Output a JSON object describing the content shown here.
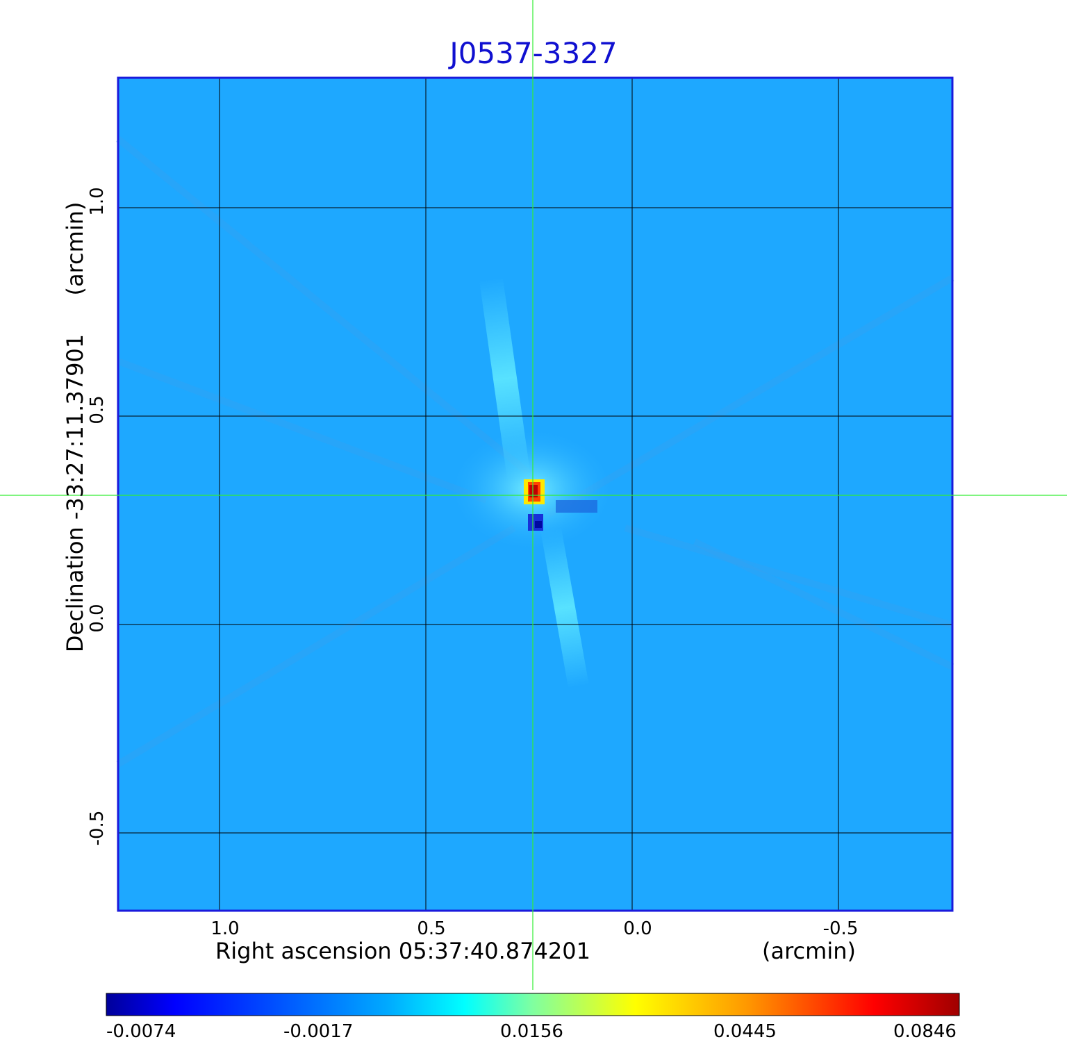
{
  "image": {
    "title": "J0537-3327",
    "x_axis": {
      "label": "Right ascension  05:37:40.874201",
      "unit": "(arcmin)",
      "ticks": [
        "1.0",
        "0.5",
        "0.0",
        "-0.5"
      ]
    },
    "y_axis": {
      "label": "Declination  -33:27:11.37901",
      "unit": "(arcmin)",
      "ticks": [
        "1.0",
        "0.5",
        "0.0",
        "-0.5"
      ]
    },
    "colorbar": {
      "ticks": [
        "-0.0074",
        "-0.0017",
        "0.0156",
        "0.0445",
        "0.0846"
      ],
      "colormap": "jet"
    },
    "colors": {
      "background_field": "#1ea8ff",
      "frame": "#1a1adc",
      "crosshair": "#33ee33",
      "title": "#1010d0"
    }
  }
}
